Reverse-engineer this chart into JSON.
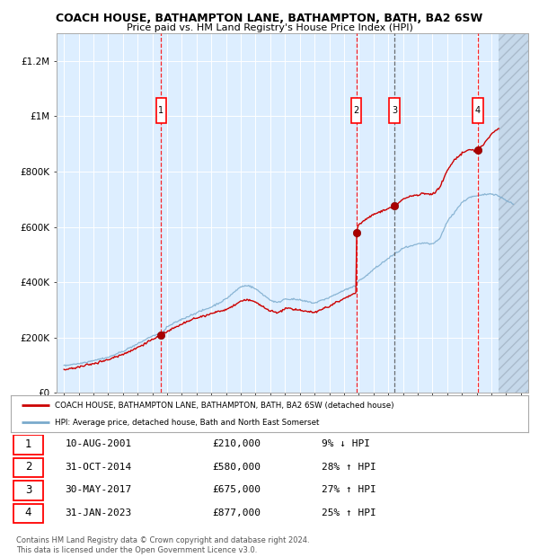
{
  "title": "COACH HOUSE, BATHAMPTON LANE, BATHAMPTON, BATH, BA2 6SW",
  "subtitle": "Price paid vs. HM Land Registry's House Price Index (HPI)",
  "legend_line1": "COACH HOUSE, BATHAMPTON LANE, BATHAMPTON, BATH, BA2 6SW (detached house)",
  "legend_line2": "HPI: Average price, detached house, Bath and North East Somerset",
  "footer": "Contains HM Land Registry data © Crown copyright and database right 2024.\nThis data is licensed under the Open Government Licence v3.0.",
  "sales": [
    {
      "num": 1,
      "date": "10-AUG-2001",
      "price": 210000,
      "pct": "9%",
      "dir": "↓"
    },
    {
      "num": 2,
      "date": "31-OCT-2014",
      "price": 580000,
      "pct": "28%",
      "dir": "↑"
    },
    {
      "num": 3,
      "date": "30-MAY-2017",
      "price": 675000,
      "pct": "27%",
      "dir": "↑"
    },
    {
      "num": 4,
      "date": "31-JAN-2023",
      "price": 877000,
      "pct": "25%",
      "dir": "↑"
    }
  ],
  "sale_years": [
    2001.6,
    2014.83,
    2017.42,
    2023.08
  ],
  "sale_prices": [
    210000,
    580000,
    675000,
    877000
  ],
  "sale_vline_styles": [
    "red-dashed",
    "red-dashed",
    "grey-dashed",
    "red-dashed"
  ],
  "ylim": [
    0,
    1300000
  ],
  "yticks": [
    0,
    200000,
    400000,
    600000,
    800000,
    1000000,
    1200000
  ],
  "ytick_labels": [
    "£0",
    "£200K",
    "£400K",
    "£600K",
    "£800K",
    "£1M",
    "£1.2M"
  ],
  "xmin": 1994.5,
  "xmax": 2026.5,
  "hatch_start": 2024.5,
  "bg_color": "#ddeeff",
  "grid_color": "#ffffff",
  "red_color": "#cc0000",
  "blue_color": "#7aaacc"
}
